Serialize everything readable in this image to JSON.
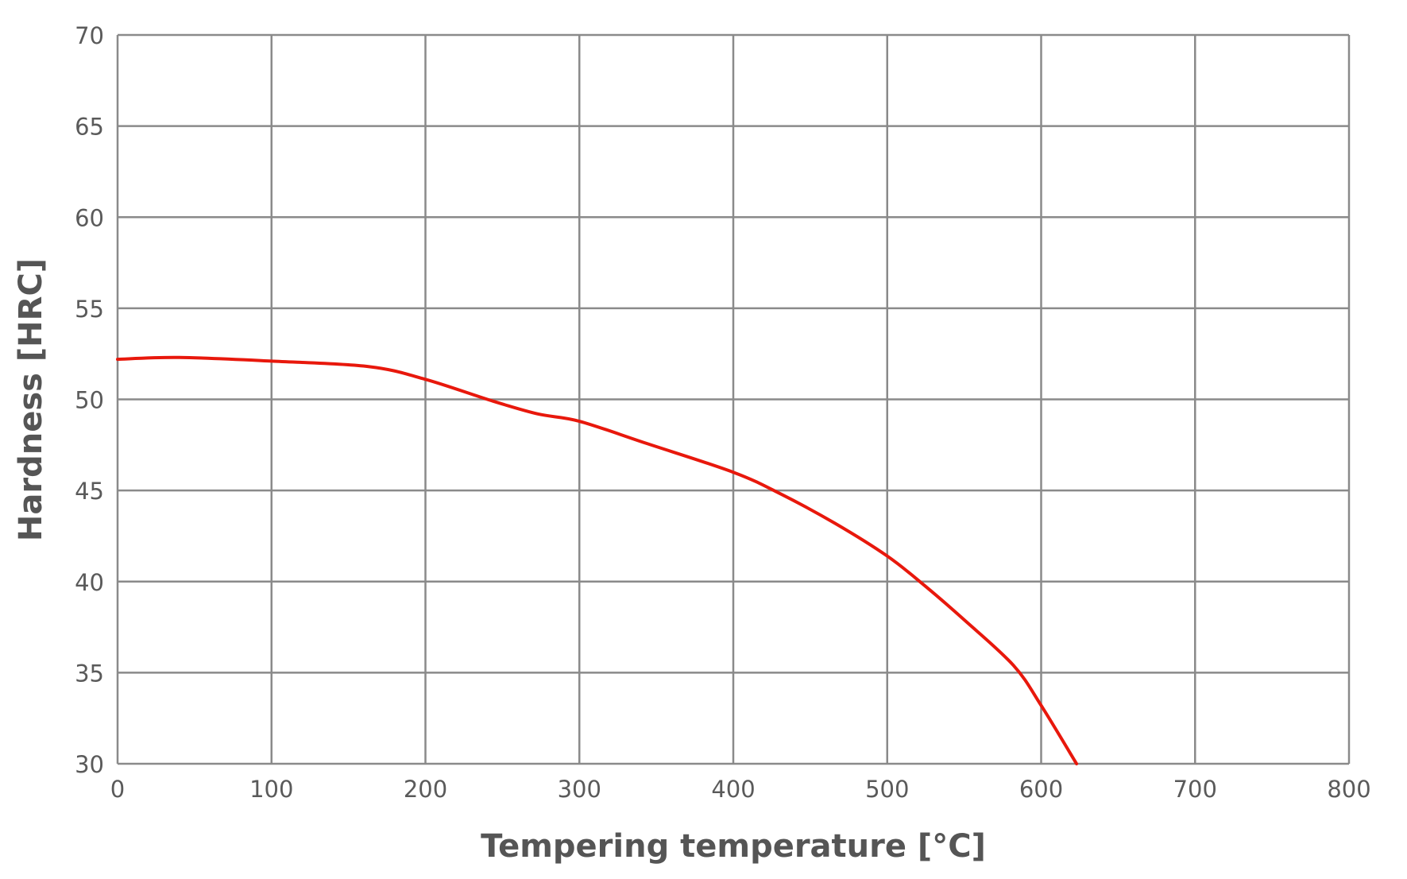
{
  "chart_data": {
    "type": "line",
    "title": "",
    "xlabel": "Tempering temperature [°C]",
    "ylabel": "Hardness [HRC]",
    "xlim": [
      0,
      800
    ],
    "ylim": [
      30,
      70
    ],
    "xticks": [
      "0",
      "100",
      "200",
      "300",
      "400",
      "500",
      "600",
      "700",
      "800"
    ],
    "yticks": [
      "30",
      "35",
      "40",
      "45",
      "50",
      "55",
      "60",
      "65",
      "70"
    ],
    "grid": true,
    "series": [
      {
        "color": "#e8180c",
        "x": [
          0,
          40,
          100,
          163,
          200,
          244,
          273,
          300,
          343,
          400,
          431,
          466,
          500,
          524,
          550,
          582,
          600,
          623
        ],
        "y": [
          52.2,
          52.3,
          52.1,
          51.8,
          51.1,
          49.9,
          49.2,
          48.8,
          47.6,
          46.0,
          44.8,
          43.2,
          41.4,
          39.8,
          37.9,
          35.4,
          33.2,
          30.0
        ]
      }
    ],
    "colors": {
      "grid": "#8a8a8a",
      "text": "#5a5a5a"
    }
  }
}
